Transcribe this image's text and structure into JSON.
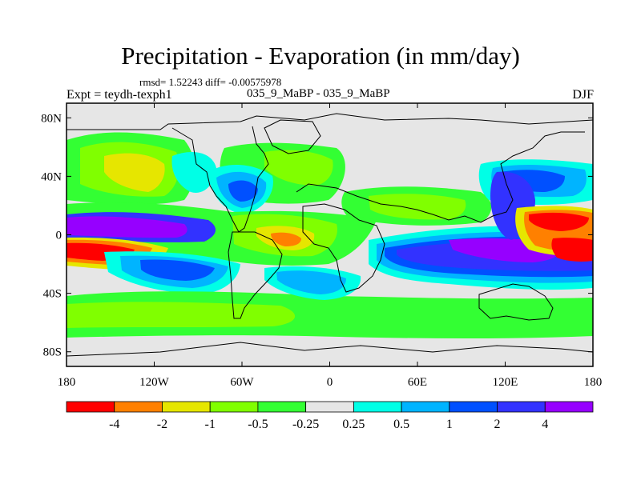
{
  "header": {
    "title": "Precipitation - Evaporation (in mm/day)",
    "stats": "rmsd= 1.52243 diff= -0.00575978",
    "left_label": "Expt = teydh-texph1",
    "center_label": "035_9_MaBP - 035_9_MaBP",
    "right_label": "DJF"
  },
  "map": {
    "projection": "cylindrical-equidistant",
    "lon_range": [
      -180,
      180
    ],
    "lat_range": [
      -90,
      90
    ],
    "x_ticks": [
      {
        "value": -180,
        "label": "180"
      },
      {
        "value": -120,
        "label": "120W"
      },
      {
        "value": -60,
        "label": "60W"
      },
      {
        "value": 0,
        "label": "0"
      },
      {
        "value": 60,
        "label": "60E"
      },
      {
        "value": 120,
        "label": "120E"
      },
      {
        "value": 180,
        "label": "180"
      }
    ],
    "y_ticks": [
      {
        "value": 80,
        "label": "80N"
      },
      {
        "value": 40,
        "label": "40N"
      },
      {
        "value": 0,
        "label": "0"
      },
      {
        "value": -40,
        "label": "40S"
      },
      {
        "value": -80,
        "label": "80S"
      }
    ]
  },
  "colorbar": {
    "levels": [
      "-4",
      "-2",
      "-1",
      "-0.5",
      "-0.25",
      "0.25",
      "0.5",
      "1",
      "2",
      "4"
    ],
    "colors": [
      "#ff0000",
      "#ff8000",
      "#e6e600",
      "#80ff00",
      "#33ff33",
      "#e6e6e6",
      "#00ffe6",
      "#00b4ff",
      "#0050ff",
      "#3232ff",
      "#9600ff"
    ]
  }
}
